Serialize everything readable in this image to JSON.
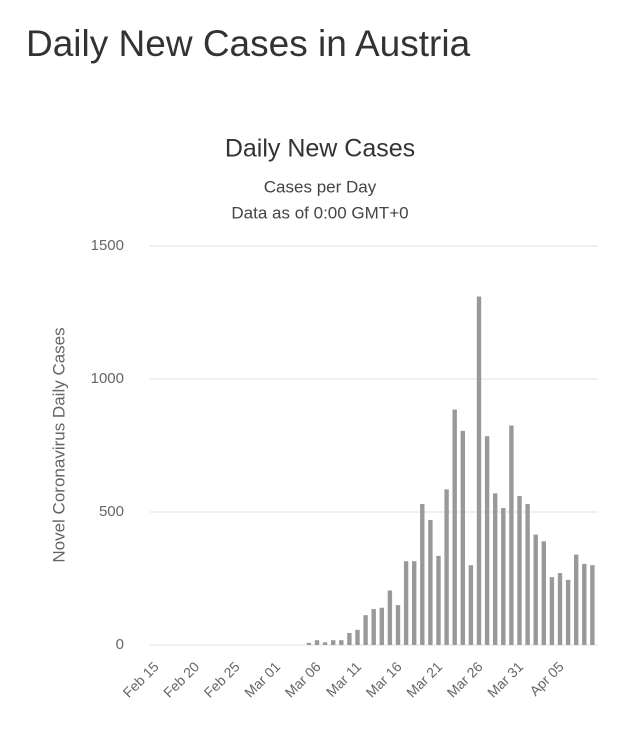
{
  "page_title": "Daily New Cases in Austria",
  "chart_data": {
    "type": "bar",
    "title": "Daily New Cases",
    "subtitle": [
      "Cases per Day",
      "Data as of 0:00 GMT+0"
    ],
    "y_label": "Novel Coronavirus Daily Cases",
    "categories": [
      "Feb 15",
      null,
      null,
      null,
      null,
      "Feb 20",
      null,
      null,
      null,
      null,
      "Feb 25",
      null,
      null,
      null,
      null,
      "Mar 01",
      null,
      null,
      null,
      null,
      "Mar 06",
      null,
      null,
      null,
      null,
      "Mar 11",
      null,
      null,
      null,
      null,
      "Mar 16",
      null,
      null,
      null,
      null,
      "Mar 21",
      null,
      null,
      null,
      null,
      "Mar 26",
      null,
      null,
      null,
      null,
      "Mar 31",
      null,
      null,
      null,
      null,
      "Apr 05",
      null,
      null,
      null,
      null
    ],
    "values": [
      0,
      0,
      0,
      0,
      0,
      0,
      0,
      0,
      0,
      0,
      0,
      0,
      0,
      0,
      0,
      0,
      0,
      0,
      0,
      8,
      18,
      10,
      18,
      18,
      45,
      57,
      112,
      135,
      140,
      205,
      150,
      315,
      315,
      530,
      470,
      335,
      585,
      885,
      805,
      300,
      1310,
      785,
      570,
      515,
      825,
      560,
      530,
      415,
      390,
      255,
      270,
      245,
      340,
      305,
      300
    ],
    "color": "#999999",
    "ylim": [
      0,
      1500
    ],
    "yticks": [
      0,
      500,
      1000,
      1500
    ],
    "grid": true
  }
}
